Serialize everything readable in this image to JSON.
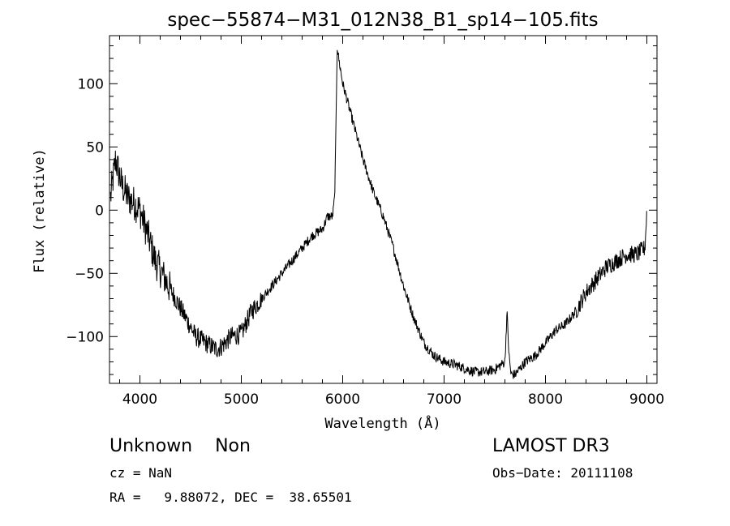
{
  "chart_data": {
    "type": "line",
    "title": "spec−55874−M31_012N38_B1_sp14−105.fits",
    "xlabel": "Wavelength (Å)",
    "ylabel": "Flux (relative)",
    "xlim": [
      3700,
      9100
    ],
    "ylim": [
      -137,
      138
    ],
    "x_ticks": [
      4000,
      5000,
      6000,
      7000,
      8000,
      9000
    ],
    "x_tick_labels": [
      "4000",
      "5000",
      "6000",
      "7000",
      "8000",
      "9000"
    ],
    "y_ticks": [
      -100,
      -50,
      0,
      50,
      100
    ],
    "y_tick_labels": [
      "−100",
      "−50",
      "0",
      "50",
      "100"
    ],
    "grid": false,
    "legend": "none",
    "series": [
      {
        "color": "#000000",
        "x": [
          3710,
          3760,
          3820,
          3880,
          3950,
          4000,
          4080,
          4150,
          4250,
          4350,
          4450,
          4550,
          4650,
          4750,
          4800,
          4900,
          5000,
          5100,
          5200,
          5300,
          5400,
          5500,
          5600,
          5700,
          5800,
          5850,
          5900,
          5920,
          5930,
          5945,
          5960,
          6000,
          6050,
          6100,
          6200,
          6300,
          6400,
          6500,
          6600,
          6700,
          6800,
          6900,
          7000,
          7100,
          7200,
          7300,
          7400,
          7500,
          7600,
          7620,
          7640,
          7660,
          7700,
          7800,
          7900,
          8000,
          8100,
          8200,
          8300,
          8400,
          8500,
          8600,
          8700,
          8800,
          8900,
          8980,
          9000
        ],
        "y": [
          10,
          40,
          20,
          10,
          5,
          0,
          -20,
          -40,
          -55,
          -70,
          -85,
          -100,
          -105,
          -110,
          -108,
          -100,
          -98,
          -80,
          -70,
          -60,
          -50,
          -40,
          -30,
          -20,
          -15,
          -5,
          -5,
          10,
          50,
          130,
          120,
          100,
          85,
          70,
          40,
          15,
          -5,
          -30,
          -60,
          -85,
          -105,
          -115,
          -120,
          -122,
          -125,
          -128,
          -128,
          -126,
          -120,
          -80,
          -115,
          -130,
          -130,
          -120,
          -115,
          -105,
          -95,
          -90,
          -80,
          -65,
          -55,
          -45,
          -40,
          -35,
          -35,
          -30,
          0
        ]
      }
    ]
  },
  "info": {
    "class_line": "Unknown    Non",
    "cz_line": "cz = NaN",
    "coord_line": "RA =   9.88072, DEC =  38.65501",
    "survey": "LAMOST DR3",
    "obs_date": "Obs−Date: 20111108"
  }
}
